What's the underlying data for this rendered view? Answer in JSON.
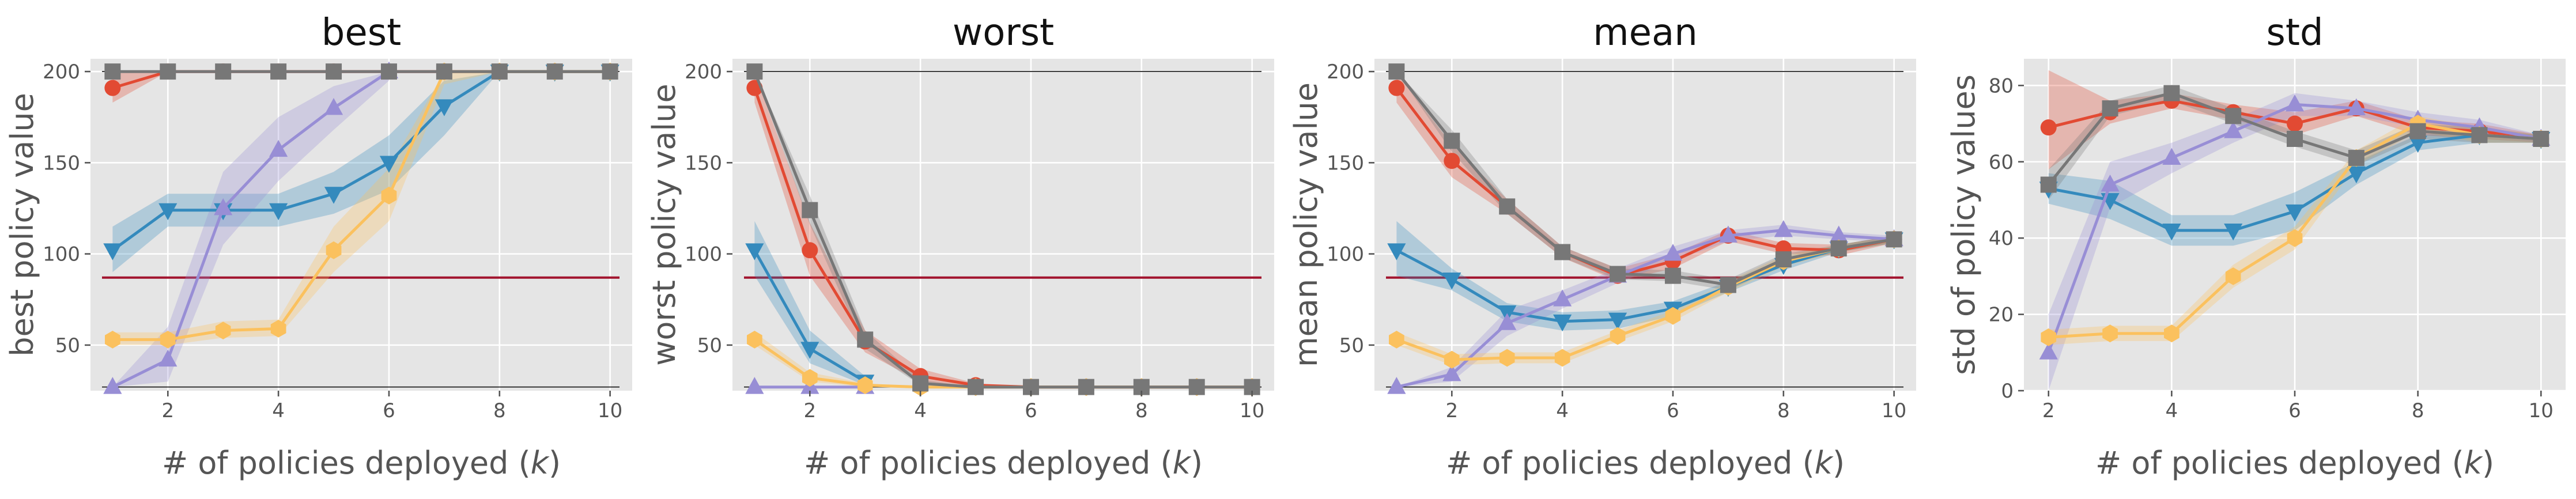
{
  "chart_data": [
    {
      "type": "line",
      "title": "best",
      "xlabel": "# of policies deployed (k)",
      "ylabel": "best policy value",
      "xlim": [
        0.6,
        10.4
      ],
      "ylim": [
        25,
        207
      ],
      "xticks": [
        2,
        4,
        6,
        8,
        10
      ],
      "yticks": [
        50,
        100,
        150,
        200
      ],
      "hlines": [
        {
          "y": 200,
          "color": "#000000",
          "width": 1.5
        },
        {
          "y": 27,
          "color": "#000000",
          "width": 1.5
        },
        {
          "y": 87,
          "color": "#a2142f",
          "width": 4
        }
      ],
      "series": [
        {
          "marker": "circle",
          "color": "#e24a33",
          "x": [
            1,
            2,
            3,
            4,
            5,
            6,
            7,
            8,
            9,
            10
          ],
          "y": [
            191,
            200,
            200,
            200,
            200,
            200,
            200,
            200,
            200,
            200
          ],
          "lower": [
            183,
            200,
            200,
            200,
            200,
            200,
            200,
            200,
            200,
            200
          ],
          "upper": [
            199,
            200,
            200,
            200,
            200,
            200,
            200,
            200,
            200,
            200
          ]
        },
        {
          "marker": "triangle-down",
          "color": "#348abd",
          "x": [
            1,
            2,
            3,
            4,
            5,
            6,
            7,
            8,
            9,
            10
          ],
          "y": [
            102,
            124,
            124,
            124,
            133,
            150,
            181,
            200,
            200,
            200
          ],
          "lower": [
            90,
            115,
            115,
            115,
            122,
            135,
            165,
            200,
            200,
            200
          ],
          "upper": [
            115,
            133,
            133,
            133,
            145,
            165,
            195,
            200,
            200,
            200
          ]
        },
        {
          "marker": "triangle-up",
          "color": "#988ed5",
          "x": [
            1,
            2,
            3,
            4,
            5,
            6
          ],
          "y": [
            27,
            42,
            125,
            157,
            180,
            200
          ],
          "lower": [
            27,
            30,
            105,
            140,
            168,
            195
          ],
          "upper": [
            27,
            60,
            145,
            175,
            192,
            200
          ]
        },
        {
          "marker": "hexagon",
          "color": "#fbc15e",
          "x": [
            1,
            2,
            3,
            4,
            5,
            6,
            7,
            8,
            9,
            10
          ],
          "y": [
            53,
            53,
            58,
            59,
            102,
            132,
            200,
            200,
            200,
            200
          ],
          "lower": [
            50,
            50,
            54,
            55,
            90,
            118,
            193,
            200,
            200,
            200
          ],
          "upper": [
            57,
            57,
            63,
            64,
            115,
            147,
            200,
            200,
            200,
            200
          ]
        },
        {
          "marker": "square",
          "color": "#777777",
          "x": [
            1,
            2,
            3,
            4,
            5,
            6,
            7,
            8,
            9,
            10
          ],
          "y": [
            200,
            200,
            200,
            200,
            200,
            200,
            200,
            200,
            200,
            200
          ],
          "lower": [
            200,
            200,
            200,
            200,
            200,
            200,
            200,
            200,
            200,
            200
          ],
          "upper": [
            200,
            200,
            200,
            200,
            200,
            200,
            200,
            200,
            200,
            200
          ]
        }
      ]
    },
    {
      "type": "line",
      "title": "worst",
      "xlabel": "# of policies deployed (k)",
      "ylabel": "worst policy value",
      "xlim": [
        0.6,
        10.4
      ],
      "ylim": [
        25,
        207
      ],
      "xticks": [
        2,
        4,
        6,
        8,
        10
      ],
      "yticks": [
        50,
        100,
        150,
        200
      ],
      "hlines": [
        {
          "y": 200,
          "color": "#000000",
          "width": 1.5
        },
        {
          "y": 27,
          "color": "#000000",
          "width": 1.5
        },
        {
          "y": 87,
          "color": "#a2142f",
          "width": 4
        }
      ],
      "series": [
        {
          "marker": "circle",
          "color": "#e24a33",
          "x": [
            1,
            2,
            3,
            4,
            5,
            6,
            7,
            8,
            9,
            10
          ],
          "y": [
            191,
            102,
            52,
            33,
            28,
            27,
            27,
            27,
            27,
            27
          ],
          "lower": [
            183,
            88,
            46,
            30,
            27,
            27,
            27,
            27,
            27,
            27
          ],
          "upper": [
            199,
            117,
            58,
            37,
            29,
            27,
            27,
            27,
            27,
            27
          ]
        },
        {
          "marker": "triangle-down",
          "color": "#348abd",
          "x": [
            1,
            2,
            3
          ],
          "y": [
            102,
            48,
            30
          ],
          "lower": [
            88,
            40,
            28
          ],
          "upper": [
            118,
            58,
            33
          ]
        },
        {
          "marker": "triangle-up",
          "color": "#988ed5",
          "x": [
            1,
            2,
            3
          ],
          "y": [
            27,
            27,
            27
          ],
          "lower": [
            27,
            27,
            27
          ],
          "upper": [
            27,
            27,
            27
          ]
        },
        {
          "marker": "hexagon",
          "color": "#fbc15e",
          "x": [
            1,
            2,
            3,
            4,
            5,
            6,
            7,
            8,
            9,
            10
          ],
          "y": [
            53,
            32,
            28,
            27,
            27,
            27,
            27,
            27,
            27,
            27
          ],
          "lower": [
            50,
            30,
            27,
            27,
            27,
            27,
            27,
            27,
            27,
            27
          ],
          "upper": [
            57,
            35,
            29,
            27,
            27,
            27,
            27,
            27,
            27,
            27
          ]
        },
        {
          "marker": "square",
          "color": "#777777",
          "x": [
            1,
            2,
            3,
            4,
            5,
            6,
            7,
            8,
            9,
            10
          ],
          "y": [
            200,
            124,
            53,
            29,
            27,
            27,
            27,
            27,
            27,
            27
          ],
          "lower": [
            200,
            116,
            48,
            28,
            27,
            27,
            27,
            27,
            27,
            27
          ],
          "upper": [
            200,
            132,
            58,
            31,
            27,
            27,
            27,
            27,
            27,
            27
          ]
        }
      ]
    },
    {
      "type": "line",
      "title": "mean",
      "xlabel": "# of policies deployed (k)",
      "ylabel": "mean policy value",
      "xlim": [
        0.6,
        10.4
      ],
      "ylim": [
        25,
        207
      ],
      "xticks": [
        2,
        4,
        6,
        8,
        10
      ],
      "yticks": [
        50,
        100,
        150,
        200
      ],
      "hlines": [
        {
          "y": 200,
          "color": "#000000",
          "width": 1.5
        },
        {
          "y": 27,
          "color": "#000000",
          "width": 1.5
        },
        {
          "y": 87,
          "color": "#a2142f",
          "width": 4
        }
      ],
      "series": [
        {
          "marker": "circle",
          "color": "#e24a33",
          "x": [
            1,
            2,
            3,
            4,
            5,
            6,
            7,
            8,
            9,
            10
          ],
          "y": [
            191,
            151,
            126,
            101,
            88,
            96,
            110,
            103,
            102,
            108
          ],
          "lower": [
            183,
            142,
            122,
            98,
            85,
            92,
            107,
            100,
            99,
            106
          ],
          "upper": [
            199,
            160,
            130,
            104,
            92,
            100,
            113,
            106,
            105,
            110
          ]
        },
        {
          "marker": "triangle-down",
          "color": "#348abd",
          "x": [
            1,
            2,
            3,
            4,
            5,
            6,
            7,
            8,
            9,
            10
          ],
          "y": [
            102,
            86,
            68,
            63,
            64,
            70,
            82,
            94,
            103,
            108
          ],
          "lower": [
            88,
            80,
            63,
            58,
            59,
            66,
            79,
            91,
            101,
            106
          ],
          "upper": [
            118,
            92,
            73,
            68,
            69,
            74,
            85,
            97,
            105,
            110
          ]
        },
        {
          "marker": "triangle-up",
          "color": "#988ed5",
          "x": [
            1,
            2,
            3,
            4,
            5,
            6,
            7,
            8,
            9,
            10
          ],
          "y": [
            27,
            34,
            62,
            75,
            88,
            100,
            110,
            113,
            110,
            108
          ],
          "lower": [
            27,
            30,
            55,
            70,
            84,
            96,
            107,
            110,
            108,
            106
          ],
          "upper": [
            27,
            38,
            69,
            80,
            92,
            104,
            113,
            116,
            112,
            110
          ]
        },
        {
          "marker": "hexagon",
          "color": "#fbc15e",
          "x": [
            1,
            2,
            3,
            4,
            5,
            6,
            7,
            8,
            9,
            10
          ],
          "y": [
            53,
            42,
            43,
            43,
            55,
            66,
            82,
            96,
            103,
            108
          ],
          "lower": [
            50,
            39,
            40,
            40,
            52,
            63,
            79,
            93,
            101,
            106
          ],
          "upper": [
            57,
            45,
            46,
            46,
            58,
            69,
            85,
            99,
            105,
            110
          ]
        },
        {
          "marker": "square",
          "color": "#777777",
          "x": [
            1,
            2,
            3,
            4,
            5,
            6,
            7,
            8,
            9,
            10
          ],
          "y": [
            200,
            162,
            126,
            101,
            89,
            88,
            83,
            97,
            103,
            108
          ],
          "lower": [
            200,
            156,
            122,
            98,
            86,
            85,
            80,
            94,
            101,
            106
          ],
          "upper": [
            200,
            168,
            130,
            104,
            92,
            91,
            86,
            100,
            105,
            110
          ]
        }
      ]
    },
    {
      "type": "line",
      "title": "std",
      "xlabel": "# of policies deployed (k)",
      "ylabel": "std of policy values",
      "xlim": [
        1.6,
        10.4
      ],
      "ylim": [
        0,
        87
      ],
      "xticks": [
        2,
        4,
        6,
        8,
        10
      ],
      "yticks": [
        0,
        20,
        40,
        60,
        80
      ],
      "hlines": [],
      "series": [
        {
          "marker": "circle",
          "color": "#e24a33",
          "x": [
            2,
            3,
            4,
            5,
            6,
            7,
            8,
            9,
            10
          ],
          "y": [
            69,
            73,
            76,
            73,
            70,
            74,
            69,
            68,
            66
          ],
          "lower": [
            58,
            70,
            74,
            71,
            67,
            72,
            67,
            66,
            65
          ],
          "upper": [
            84,
            76,
            78,
            75,
            73,
            76,
            71,
            70,
            67
          ]
        },
        {
          "marker": "triangle-down",
          "color": "#348abd",
          "x": [
            2,
            3,
            4,
            5,
            6,
            7,
            8,
            9,
            10
          ],
          "y": [
            53,
            50,
            42,
            42,
            47,
            57,
            65,
            67,
            66
          ],
          "lower": [
            49,
            45,
            38,
            38,
            42,
            54,
            63,
            65,
            65
          ],
          "upper": [
            57,
            55,
            46,
            46,
            52,
            60,
            67,
            68,
            67
          ]
        },
        {
          "marker": "triangle-up",
          "color": "#988ed5",
          "x": [
            2,
            3,
            4,
            5,
            6,
            7,
            8,
            9,
            10
          ],
          "y": [
            10,
            54,
            61,
            68,
            75,
            74,
            71,
            69,
            66
          ],
          "lower": [
            0,
            48,
            57,
            65,
            72,
            72,
            69,
            67,
            65
          ],
          "upper": [
            20,
            60,
            65,
            71,
            78,
            76,
            73,
            71,
            67
          ]
        },
        {
          "marker": "hexagon",
          "color": "#fbc15e",
          "x": [
            2,
            3,
            4,
            5,
            6,
            7,
            8,
            9,
            10
          ],
          "y": [
            14,
            15,
            15,
            30,
            40,
            61,
            70,
            67,
            66
          ],
          "lower": [
            12,
            13,
            13,
            27,
            37,
            59,
            68,
            65,
            65
          ],
          "upper": [
            16,
            17,
            17,
            33,
            43,
            63,
            72,
            69,
            67
          ]
        },
        {
          "marker": "square",
          "color": "#777777",
          "x": [
            2,
            3,
            4,
            5,
            6,
            7,
            8,
            9,
            10
          ],
          "y": [
            54,
            74,
            78,
            72,
            66,
            61,
            68,
            67,
            66
          ],
          "lower": [
            50,
            72,
            76,
            70,
            64,
            59,
            66,
            65,
            65
          ],
          "upper": [
            58,
            76,
            80,
            74,
            68,
            63,
            70,
            69,
            67
          ]
        }
      ]
    }
  ]
}
